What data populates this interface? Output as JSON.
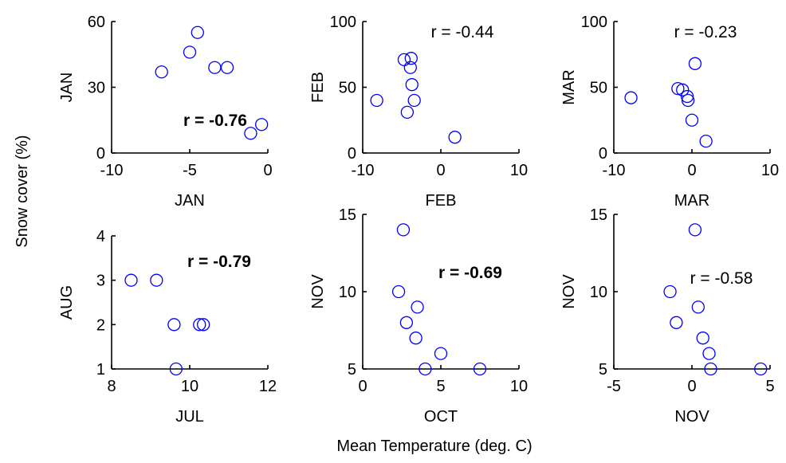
{
  "title": "",
  "ylabel": "Snow cover (%)",
  "xlabel": "Mean Temperature (deg. C)",
  "marker_color": "#0000ff",
  "chart_data": [
    {
      "type": "scatter",
      "xlabel": "JAN",
      "ylabel": "JAN",
      "xlim": [
        -10,
        0
      ],
      "ylim": [
        0,
        60
      ],
      "xticks": [
        -10,
        -5,
        0
      ],
      "yticks": [
        0,
        30,
        60
      ],
      "annotation": "r = -0.76",
      "annotation_bold": true,
      "points": [
        {
          "x": -6.8,
          "y": 37
        },
        {
          "x": -5.0,
          "y": 46
        },
        {
          "x": -4.5,
          "y": 55
        },
        {
          "x": -3.4,
          "y": 39
        },
        {
          "x": -2.6,
          "y": 39
        },
        {
          "x": -1.1,
          "y": 9
        },
        {
          "x": -0.4,
          "y": 13
        }
      ]
    },
    {
      "type": "scatter",
      "xlabel": "FEB",
      "ylabel": "FEB",
      "xlim": [
        -10,
        10
      ],
      "ylim": [
        0,
        100
      ],
      "xticks": [
        -10,
        0,
        10
      ],
      "yticks": [
        0,
        50,
        100
      ],
      "annotation": "r = -0.44",
      "annotation_bold": false,
      "points": [
        {
          "x": -8.2,
          "y": 40
        },
        {
          "x": -4.7,
          "y": 71
        },
        {
          "x": -4.3,
          "y": 31
        },
        {
          "x": -3.8,
          "y": 72
        },
        {
          "x": -3.9,
          "y": 65
        },
        {
          "x": -3.7,
          "y": 52
        },
        {
          "x": -3.4,
          "y": 40
        },
        {
          "x": 1.8,
          "y": 12
        }
      ]
    },
    {
      "type": "scatter",
      "xlabel": "MAR",
      "ylabel": "MAR",
      "xlim": [
        -10,
        10
      ],
      "ylim": [
        0,
        100
      ],
      "xticks": [
        -10,
        0,
        10
      ],
      "yticks": [
        0,
        50,
        100
      ],
      "annotation": "r = -0.23",
      "annotation_bold": false,
      "points": [
        {
          "x": -7.8,
          "y": 42
        },
        {
          "x": -1.8,
          "y": 49
        },
        {
          "x": -1.2,
          "y": 48
        },
        {
          "x": -0.6,
          "y": 43
        },
        {
          "x": -0.5,
          "y": 40
        },
        {
          "x": 0.4,
          "y": 68
        },
        {
          "x": 0.0,
          "y": 25
        },
        {
          "x": 1.8,
          "y": 9
        }
      ]
    },
    {
      "type": "scatter",
      "xlabel": "JUL",
      "ylabel": "AUG",
      "xlim": [
        8,
        12
      ],
      "ylim": [
        1,
        4
      ],
      "xticks": [
        8,
        10,
        12
      ],
      "yticks": [
        1,
        2,
        3,
        4
      ],
      "annotation": "r = -0.79",
      "annotation_bold": true,
      "points": [
        {
          "x": 8.5,
          "y": 3
        },
        {
          "x": 9.15,
          "y": 3
        },
        {
          "x": 9.6,
          "y": 2
        },
        {
          "x": 9.65,
          "y": 1
        },
        {
          "x": 10.25,
          "y": 2
        },
        {
          "x": 10.35,
          "y": 2
        }
      ]
    },
    {
      "type": "scatter",
      "xlabel": "OCT",
      "ylabel": "NOV",
      "xlim": [
        0,
        10
      ],
      "ylim": [
        5,
        15
      ],
      "xticks": [
        0,
        5,
        10
      ],
      "yticks": [
        5,
        10,
        15
      ],
      "annotation": "r = -0.69",
      "annotation_bold": true,
      "points": [
        {
          "x": 2.3,
          "y": 10
        },
        {
          "x": 2.6,
          "y": 14
        },
        {
          "x": 2.8,
          "y": 8
        },
        {
          "x": 3.5,
          "y": 9
        },
        {
          "x": 3.4,
          "y": 7
        },
        {
          "x": 4.0,
          "y": 5
        },
        {
          "x": 5.0,
          "y": 6
        },
        {
          "x": 7.5,
          "y": 5
        }
      ]
    },
    {
      "type": "scatter",
      "xlabel": "NOV",
      "ylabel": "NOV",
      "xlim": [
        -5,
        5
      ],
      "ylim": [
        5,
        15
      ],
      "xticks": [
        -5,
        0,
        5
      ],
      "yticks": [
        5,
        10,
        15
      ],
      "annotation": "r = -0.58",
      "annotation_bold": false,
      "points": [
        {
          "x": -1.4,
          "y": 10
        },
        {
          "x": -1.0,
          "y": 8
        },
        {
          "x": 0.2,
          "y": 14
        },
        {
          "x": 0.4,
          "y": 9
        },
        {
          "x": 0.7,
          "y": 7
        },
        {
          "x": 1.1,
          "y": 6
        },
        {
          "x": 1.2,
          "y": 5
        },
        {
          "x": 4.4,
          "y": 5
        }
      ]
    }
  ]
}
